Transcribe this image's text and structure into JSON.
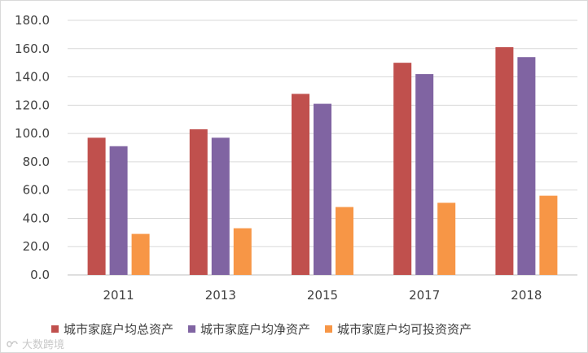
{
  "chart_data": {
    "type": "bar",
    "title": "",
    "xlabel": "",
    "ylabel": "",
    "categories": [
      "2011",
      "2013",
      "2015",
      "2017",
      "2018"
    ],
    "ylim": [
      0,
      180
    ],
    "yticks": [
      "0.0",
      "20.0",
      "40.0",
      "60.0",
      "80.0",
      "100.0",
      "120.0",
      "140.0",
      "160.0",
      "180.0"
    ],
    "grid": "horizontal",
    "legend_position": "bottom",
    "series": [
      {
        "name": "城市家庭户均总资产",
        "color": "#c0504d",
        "values": [
          97,
          103,
          128,
          150,
          161
        ]
      },
      {
        "name": "城市家庭户均净资产",
        "color": "#8064a2",
        "values": [
          91,
          97,
          121,
          142,
          154
        ]
      },
      {
        "name": "城市家庭户均可投资资产",
        "color": "#f79646",
        "values": [
          29,
          33,
          48,
          51,
          56
        ]
      }
    ]
  },
  "watermark": {
    "text": "大数跨境",
    "icon": "logo-mark-icon"
  }
}
